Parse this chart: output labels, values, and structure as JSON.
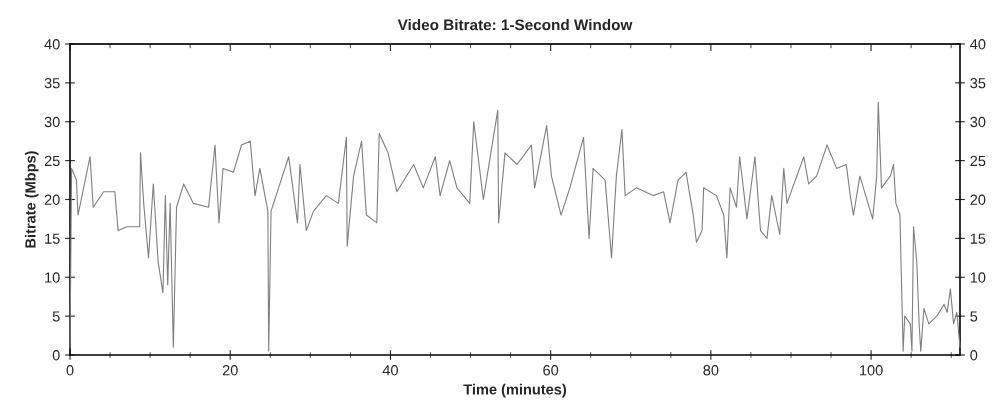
{
  "chart_data": {
    "type": "line",
    "title": "Video Bitrate: 1-Second Window",
    "xlabel": "Time (minutes)",
    "ylabel": "Bitrate (Mbps)",
    "series": [
      {
        "color": "#808080",
        "x": [
          0.0,
          0.2,
          0.8,
          1.0,
          2.5,
          2.9,
          4.2,
          5.6,
          6.0,
          7.1,
          8.7,
          8.8,
          9.2,
          9.8,
          10.4,
          11.0,
          11.6,
          11.9,
          12.2,
          12.5,
          12.9,
          13.3,
          14.2,
          15.4,
          17.3,
          18.1,
          18.6,
          19.1,
          20.4,
          21.4,
          22.5,
          23.1,
          23.7,
          24.7,
          24.8,
          25.1,
          26.2,
          27.3,
          28.4,
          28.7,
          29.5,
          30.4,
          32.0,
          33.5,
          34.5,
          34.6,
          35.4,
          36.4,
          37.0,
          38.3,
          38.6,
          39.7,
          40.8,
          42.9,
          44.1,
          45.6,
          46.2,
          47.4,
          48.3,
          49.9,
          50.4,
          51.6,
          53.4,
          53.5,
          54.3,
          55.8,
          57.6,
          58.0,
          59.5,
          60.1,
          61.3,
          62.4,
          64.1,
          64.8,
          65.3,
          66.8,
          67.6,
          68.2,
          68.9,
          69.3,
          70.7,
          72.8,
          74.1,
          74.9,
          75.9,
          76.9,
          77.8,
          78.2,
          78.9,
          79.1,
          80.7,
          81.6,
          82.0,
          82.4,
          83.2,
          83.6,
          84.5,
          85.5,
          86.2,
          87.0,
          87.6,
          88.6,
          89.1,
          89.5,
          91.6,
          92.2,
          93.2,
          94.5,
          95.7,
          96.9,
          97.4,
          97.8,
          98.6,
          100.2,
          100.7,
          100.9,
          101.3,
          102.4,
          102.8,
          103.1,
          103.6,
          104.0,
          104.2,
          104.9,
          105.1,
          105.3,
          105.7,
          106.0,
          106.2,
          106.6,
          107.2,
          108.2,
          109.1,
          109.5,
          109.9,
          110.3,
          110.7,
          111.1
        ],
        "values": [
          1,
          24,
          22.5,
          18,
          25.5,
          19,
          21,
          21,
          16,
          16.5,
          16.5,
          26,
          19.5,
          12.5,
          22,
          12,
          8,
          20.5,
          9,
          19.5,
          1,
          19,
          22,
          19.5,
          19,
          27,
          17,
          24,
          23.5,
          27,
          27.5,
          20.5,
          24,
          18.5,
          0.5,
          18.5,
          22,
          25.5,
          17,
          24.5,
          16,
          18.5,
          20.5,
          19.5,
          28,
          14,
          23,
          27.5,
          18,
          17,
          28.5,
          26,
          21,
          24.5,
          21.5,
          25.5,
          20.5,
          25,
          21.5,
          19.5,
          30,
          20,
          31.5,
          17,
          26,
          24.5,
          27,
          21.5,
          29.5,
          23,
          18,
          21.5,
          28,
          15,
          24,
          22.5,
          12.5,
          23,
          29,
          20.5,
          21.5,
          20.5,
          21,
          17,
          22.5,
          23.5,
          18,
          14.5,
          16,
          21.5,
          20.5,
          18,
          12.5,
          21.5,
          19,
          25.5,
          17.5,
          25.5,
          16,
          15,
          20.5,
          15.5,
          24,
          19.5,
          25.5,
          22,
          23,
          27,
          24,
          24.5,
          20.5,
          18,
          23,
          17.5,
          23,
          32.5,
          21.5,
          23,
          24.5,
          19.5,
          18,
          0.5,
          5,
          4,
          0.5,
          16.5,
          12,
          4,
          0.5,
          6,
          4,
          5,
          6.5,
          5.5,
          8.5,
          4,
          5.5,
          1
        ]
      }
    ],
    "xlim": [
      0,
      111.1
    ],
    "xticks": [
      0,
      {
        "value": 5,
        "label": null
      },
      {
        "value": 10,
        "label": null
      },
      {
        "value": 15,
        "label": null
      },
      20,
      {
        "value": 25,
        "label": null
      },
      {
        "value": 30,
        "label": null
      },
      {
        "value": 35,
        "label": null
      },
      40,
      {
        "value": 45,
        "label": null
      },
      {
        "value": 50,
        "label": null
      },
      {
        "value": 55,
        "label": null
      },
      60,
      {
        "value": 65,
        "label": null
      },
      {
        "value": 70,
        "label": null
      },
      {
        "value": 75,
        "label": null
      },
      80,
      {
        "value": 85,
        "label": null
      },
      {
        "value": 90,
        "label": null
      },
      {
        "value": 95,
        "label": null
      },
      100,
      {
        "value": 105,
        "label": null
      },
      {
        "value": 110,
        "label": null
      }
    ],
    "ylim": [
      0,
      40
    ],
    "yticks": [
      0,
      5,
      10,
      15,
      20,
      25,
      30,
      35,
      40
    ],
    "y2lim": [
      0,
      40
    ],
    "y2ticks": [
      0,
      5,
      10,
      15,
      20,
      25,
      30,
      35,
      40
    ],
    "grid": false,
    "legend": false,
    "marker": "none",
    "line_style": "solid"
  }
}
